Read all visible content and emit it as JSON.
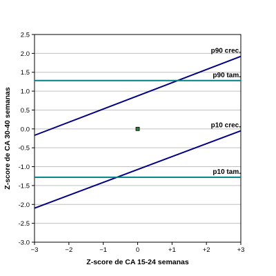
{
  "chart_data": {
    "type": "line",
    "xlabel": "Z-score de CA 15-24 semanas",
    "ylabel": "Z-score de CA 30-40 semanas",
    "xlim": [
      -3,
      3
    ],
    "ylim": [
      -3,
      2.5
    ],
    "x_ticks": [
      {
        "value": -3,
        "label": "−3"
      },
      {
        "value": -2,
        "label": "−2"
      },
      {
        "value": -1,
        "label": "−1"
      },
      {
        "value": 0,
        "label": "0"
      },
      {
        "value": 1,
        "label": "+1"
      },
      {
        "value": 2,
        "label": "+2"
      },
      {
        "value": 3,
        "label": "+3"
      }
    ],
    "y_ticks": [
      {
        "value": 2.5,
        "label": "2.5"
      },
      {
        "value": 2.0,
        "label": "2.0"
      },
      {
        "value": 1.5,
        "label": "1.5"
      },
      {
        "value": 1.0,
        "label": "1.0"
      },
      {
        "value": 0.5,
        "label": "0.5"
      },
      {
        "value": 0.0,
        "label": "0.0"
      },
      {
        "value": -0.5,
        "label": "-0.5"
      },
      {
        "value": -1.0,
        "label": "-1.0"
      },
      {
        "value": -1.5,
        "label": "-1.5"
      },
      {
        "value": -2.0,
        "label": "-2.0"
      },
      {
        "value": -2.5,
        "label": "-2.5"
      },
      {
        "value": -3.0,
        "label": "-3.0"
      }
    ],
    "grid": {
      "horizontal": true,
      "vertical": false
    },
    "series": [
      {
        "name": "p90 crec.",
        "color": "#000080",
        "x": [
          -3,
          3
        ],
        "y": [
          -0.17,
          1.92
        ]
      },
      {
        "name": "p90 tam.",
        "color": "#008080",
        "x": [
          -3,
          3
        ],
        "y": [
          1.28,
          1.28
        ]
      },
      {
        "name": "p10 crec.",
        "color": "#000080",
        "x": [
          -3,
          3
        ],
        "y": [
          -2.1,
          -0.05
        ]
      },
      {
        "name": "p10 tam.",
        "color": "#008080",
        "x": [
          -3,
          3
        ],
        "y": [
          -1.28,
          -1.28
        ]
      }
    ],
    "points": [
      {
        "x": 0,
        "y": 0,
        "color": "#2e7d32"
      }
    ]
  }
}
